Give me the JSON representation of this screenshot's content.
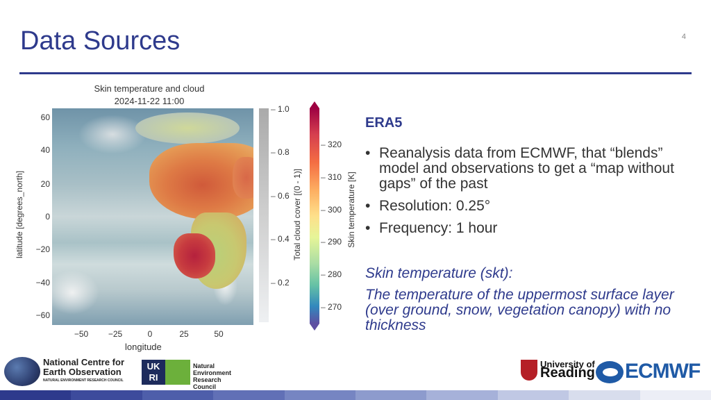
{
  "slide": {
    "title": "Data Sources",
    "page_number": "4"
  },
  "figure": {
    "title_line1": "Skin temperature and cloud",
    "title_line2": "2024-11-22 11:00",
    "ylabel": "latitude [degrees_north]",
    "xlabel": "longitude",
    "yticks": [
      "60",
      "40",
      "20",
      "0",
      "−20",
      "−40",
      "−60"
    ],
    "xticks": [
      "−50",
      "−25",
      "0",
      "25",
      "50"
    ],
    "cloud_colorbar": {
      "label": "Total cloud cover [(0 - 1)]",
      "ticks": [
        "1.0",
        "0.8",
        "0.6",
        "0.4",
        "0.2"
      ]
    },
    "skt_colorbar": {
      "label": "Skin temperature [K]",
      "ticks": [
        "320",
        "310",
        "300",
        "290",
        "280",
        "270"
      ]
    }
  },
  "content": {
    "heading": "ERA5",
    "bullets": [
      "Reanalysis data from ECMWF, that “blends” model and observations to get a “map without gaps” of the past",
      "Resolution: 0.25°",
      "Frequency: 1 hour"
    ],
    "definition_heading": "Skin temperature (skt):",
    "definition_text": "The temperature of the uppermost surface layer (over ground, snow, vegetation canopy) with no thickness"
  },
  "footer": {
    "ncao_name": "National Centre for Earth Observation",
    "ncao_sub": "NATURAL ENVIRONMENT RESEARCH COUNCIL",
    "ukri": "UK RI",
    "nerc": "Natural Environment Research Council",
    "reading_line1": "University of",
    "reading_line2": "Reading",
    "ecmwf": "ECMWF",
    "strip_colors": [
      "#2e3a8c",
      "#3d4b9c",
      "#4e5eaa",
      "#6170b6",
      "#7685c2",
      "#8d9bcd",
      "#a6b1d9",
      "#c0c8e4",
      "#d8dded",
      "#eceef6"
    ]
  }
}
